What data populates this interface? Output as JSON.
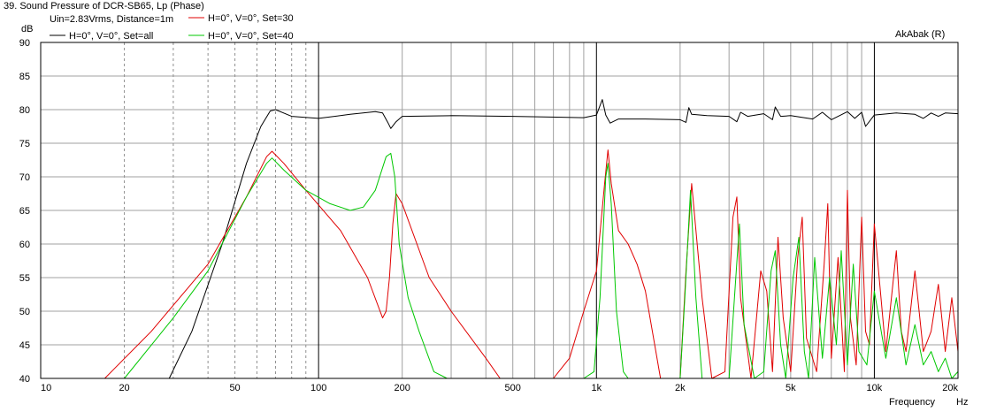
{
  "chart_data": {
    "type": "line",
    "title": "39. Sound Pressure of DCR-SB65, Lp (Phase)",
    "subtitle": "Uin=2.83Vrms, Distance=1m",
    "watermark": "AkAbak (R)",
    "ylabel": "dB",
    "xlabel": "Frequency",
    "xunit": "Hz",
    "x_scale": "log",
    "xlim": [
      10,
      20000
    ],
    "ylim": [
      40,
      90
    ],
    "grid": true,
    "legend_position": "top-left",
    "x_tick_values": [
      10,
      20,
      50,
      100,
      200,
      500,
      1000,
      2000,
      5000,
      10000,
      20000
    ],
    "x_tick_labels": [
      "10",
      "20",
      "50",
      "100",
      "200",
      "500",
      "1k",
      "2k",
      "5k",
      "10k",
      "20k"
    ],
    "y_tick_values": [
      40,
      45,
      50,
      55,
      60,
      65,
      70,
      75,
      80,
      85,
      90
    ],
    "y_tick_labels": [
      "40",
      "45",
      "50",
      "55",
      "60",
      "65",
      "70",
      "75",
      "80",
      "85",
      "90"
    ],
    "series": [
      {
        "name": "H=0°, V=0°, Set=all",
        "color": "#000000",
        "x": [
          10,
          29,
          35,
          45,
          55,
          62,
          67,
          70,
          80,
          100,
          130,
          160,
          170,
          178,
          182,
          190,
          200,
          300,
          500,
          900,
          1000,
          1050,
          1080,
          1120,
          1200,
          1500,
          2000,
          2100,
          2150,
          2200,
          2500,
          3000,
          3200,
          3300,
          3500,
          4000,
          4300,
          4400,
          4600,
          5000,
          6000,
          6500,
          7000,
          8000,
          8500,
          9000,
          9300,
          10000,
          12000,
          14000,
          15000,
          16000,
          17000,
          18000,
          20000
        ],
        "y": [
          40,
          40,
          47,
          60,
          72,
          77.5,
          79.8,
          80,
          79,
          78.7,
          79.3,
          79.7,
          79.5,
          78,
          77.2,
          78.2,
          79,
          79.1,
          79,
          78.8,
          79.2,
          81.5,
          79.2,
          78,
          78.6,
          78.6,
          78.5,
          78.1,
          80.3,
          79.3,
          79.1,
          79,
          78.2,
          79.6,
          79,
          79.4,
          78.5,
          80.4,
          79,
          79.1,
          78.6,
          79.6,
          78.5,
          79.7,
          78.7,
          79.6,
          77.5,
          79.2,
          79.5,
          79.3,
          78.7,
          79.5,
          79,
          79.5,
          79.4
        ]
      },
      {
        "name": "H=0°, V=0°, Set=30",
        "color": "#e00000",
        "x": [
          10,
          17,
          25,
          40,
          55,
          65,
          68,
          75,
          90,
          120,
          150,
          170,
          175,
          180,
          185,
          190,
          200,
          250,
          300,
          400,
          450,
          700,
          800,
          900,
          1000,
          1070,
          1100,
          1130,
          1200,
          1300,
          1400,
          1500,
          1700,
          2000,
          2100,
          2200,
          2400,
          2600,
          2900,
          3100,
          3200,
          3300,
          3600,
          3900,
          4100,
          4300,
          4500,
          4700,
          5000,
          5300,
          5500,
          5700,
          6200,
          6600,
          6800,
          7000,
          7400,
          7800,
          8000,
          8200,
          8600,
          9000,
          9300,
          9600,
          10000,
          11000,
          12000,
          12500,
          13000,
          14000,
          15000,
          16000,
          17000,
          18000,
          19000,
          20000
        ],
        "y": [
          40,
          40,
          47,
          57,
          67,
          73,
          73.8,
          72,
          68,
          62,
          55,
          49,
          50,
          55,
          63,
          67.5,
          66,
          55,
          50,
          43,
          40,
          40,
          43,
          50,
          56,
          69,
          74,
          69,
          62,
          60,
          57,
          53,
          40,
          40,
          56,
          69,
          52,
          40,
          41,
          64,
          67,
          52,
          40,
          56,
          53,
          41,
          61,
          49,
          41,
          58,
          64,
          46,
          41,
          57,
          66,
          43,
          58,
          41,
          68,
          49,
          42,
          64,
          47,
          45,
          63,
          44,
          59,
          47,
          44,
          56,
          44,
          47,
          54,
          44,
          52,
          44
        ]
      },
      {
        "name": "H=0°, V=0°, Set=40",
        "color": "#00c800",
        "x": [
          10,
          20,
          30,
          40,
          55,
          65,
          68,
          75,
          90,
          110,
          130,
          145,
          160,
          175,
          182,
          188,
          195,
          210,
          230,
          260,
          290,
          800,
          900,
          980,
          1030,
          1080,
          1100,
          1130,
          1180,
          1250,
          1300,
          2000,
          2080,
          2180,
          2280,
          2400,
          3000,
          3150,
          3270,
          3400,
          3700,
          4000,
          4250,
          4400,
          4600,
          4800,
          5100,
          5350,
          5600,
          5800,
          6100,
          6500,
          6900,
          7300,
          7600,
          8000,
          8400,
          8800,
          9400,
          10000,
          11000,
          12000,
          13000,
          14000,
          15000,
          16000,
          17000,
          18000,
          19000,
          20000
        ],
        "y": [
          40,
          40,
          49,
          56,
          67,
          72,
          72.8,
          71,
          68,
          66,
          65,
          65.5,
          68,
          73,
          73.5,
          70,
          60,
          52,
          47,
          41,
          40,
          40,
          40,
          41,
          52,
          70,
          72,
          66,
          50,
          41,
          40,
          40,
          52,
          68,
          52,
          40,
          40,
          53,
          63,
          48,
          40,
          41,
          56,
          59,
          45,
          40,
          55,
          61,
          44,
          40,
          58,
          43,
          55,
          45,
          59,
          42,
          57,
          44,
          42,
          53,
          43,
          52,
          42,
          48,
          42,
          44,
          41,
          43,
          40,
          41
        ]
      }
    ]
  }
}
